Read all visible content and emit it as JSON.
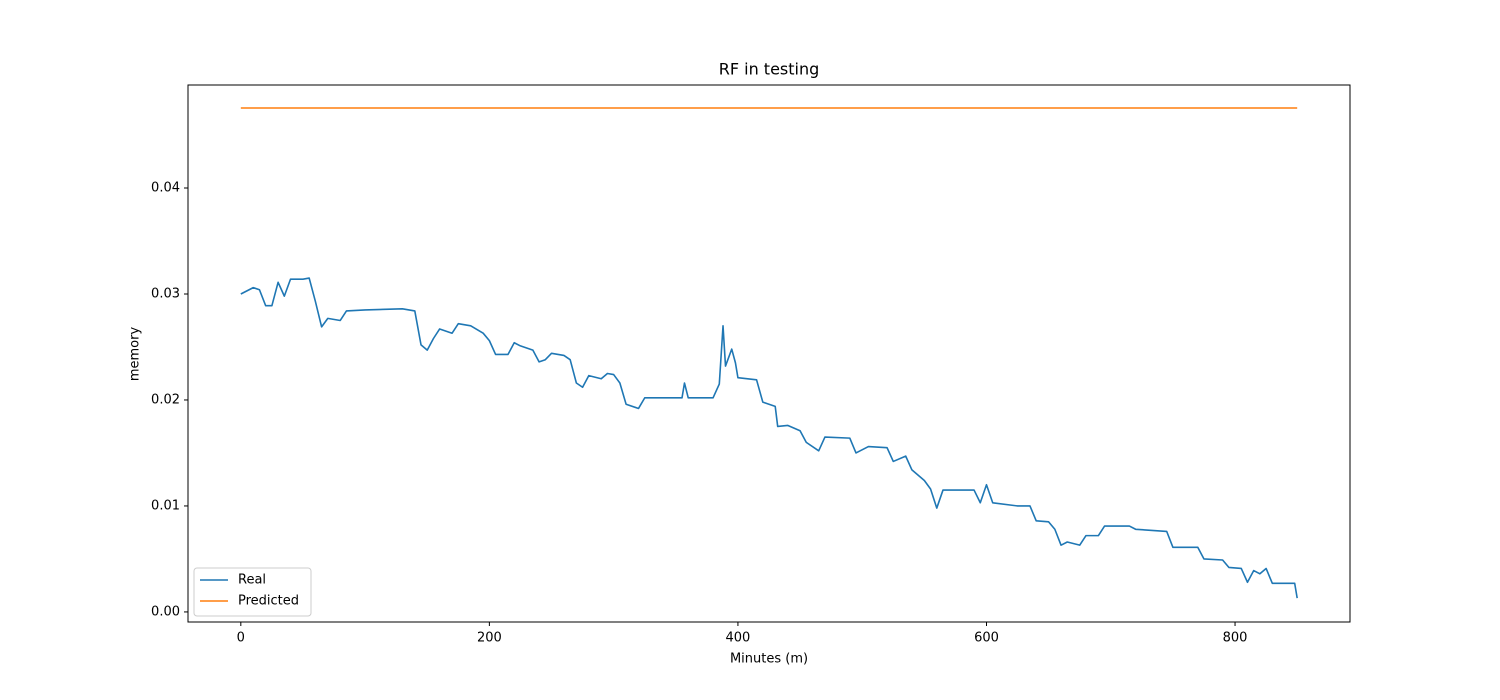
{
  "chart_data": {
    "type": "line",
    "title": "RF in testing",
    "xlabel": "Minutes (m)",
    "ylabel": "memory",
    "x": [
      0,
      10,
      15,
      20,
      25,
      30,
      35,
      40,
      50,
      55,
      60,
      65,
      70,
      80,
      85,
      100,
      130,
      140,
      145,
      150,
      155,
      160,
      170,
      175,
      185,
      195,
      200,
      205,
      215,
      220,
      225,
      235,
      240,
      245,
      250,
      260,
      265,
      270,
      275,
      280,
      290,
      295,
      300,
      305,
      310,
      320,
      325,
      355,
      357,
      360,
      380,
      385,
      388,
      390,
      395,
      398,
      400,
      415,
      420,
      430,
      432,
      440,
      450,
      455,
      465,
      470,
      490,
      495,
      505,
      520,
      525,
      535,
      540,
      550,
      555,
      560,
      565,
      590,
      595,
      600,
      605,
      625,
      635,
      640,
      650,
      655,
      660,
      665,
      675,
      680,
      690,
      695,
      715,
      720,
      745,
      750,
      770,
      775,
      790,
      795,
      805,
      810,
      815,
      820,
      825,
      830,
      845,
      848,
      850
    ],
    "series": [
      {
        "name": "Real",
        "color": "#1f77b4",
        "values": [
          0.03,
          0.0306,
          0.0304,
          0.0289,
          0.0289,
          0.0311,
          0.0298,
          0.0314,
          0.0314,
          0.0315,
          0.0293,
          0.0269,
          0.0277,
          0.0275,
          0.0284,
          0.0285,
          0.0286,
          0.0284,
          0.0252,
          0.0247,
          0.0258,
          0.0267,
          0.0263,
          0.0272,
          0.027,
          0.0263,
          0.0256,
          0.0243,
          0.0243,
          0.0254,
          0.0251,
          0.0247,
          0.0236,
          0.0238,
          0.0244,
          0.0242,
          0.0238,
          0.0216,
          0.0212,
          0.0223,
          0.022,
          0.0225,
          0.0224,
          0.0216,
          0.0196,
          0.0192,
          0.0202,
          0.0202,
          0.0216,
          0.0202,
          0.0202,
          0.0215,
          0.027,
          0.0232,
          0.0248,
          0.0235,
          0.0221,
          0.0219,
          0.0198,
          0.0194,
          0.0175,
          0.0176,
          0.0171,
          0.016,
          0.0152,
          0.0165,
          0.0164,
          0.015,
          0.0156,
          0.0155,
          0.0142,
          0.0147,
          0.0134,
          0.0124,
          0.0116,
          0.0098,
          0.0115,
          0.0115,
          0.0103,
          0.012,
          0.0103,
          0.01,
          0.01,
          0.0086,
          0.0085,
          0.0078,
          0.0063,
          0.0066,
          0.0063,
          0.0072,
          0.0072,
          0.0081,
          0.0081,
          0.0078,
          0.0076,
          0.0061,
          0.0061,
          0.005,
          0.0049,
          0.0042,
          0.0041,
          0.0028,
          0.0039,
          0.0036,
          0.0041,
          0.0027,
          0.0027,
          0.0027,
          0.0013
        ]
      },
      {
        "name": "Predicted",
        "color": "#ff7f0e",
        "values": [
          0.04755,
          0.04755,
          0.04755,
          0.04755,
          0.04755,
          0.04755,
          0.04755,
          0.04755,
          0.04755,
          0.04755,
          0.04755,
          0.04755,
          0.04755,
          0.04755,
          0.04755,
          0.04755,
          0.04755,
          0.04755,
          0.04755,
          0.04755,
          0.04755,
          0.04755,
          0.04755,
          0.04755,
          0.04755,
          0.04755,
          0.04755,
          0.04755,
          0.04755,
          0.04755,
          0.04755,
          0.04755,
          0.04755,
          0.04755,
          0.04755,
          0.04755,
          0.04755,
          0.04755,
          0.04755,
          0.04755,
          0.04755,
          0.04755,
          0.04755,
          0.04755,
          0.04755,
          0.04755,
          0.04755,
          0.04755,
          0.04755,
          0.04755,
          0.04755,
          0.04755,
          0.04755,
          0.04755,
          0.04755,
          0.04755,
          0.04755,
          0.04755,
          0.04755,
          0.04755,
          0.04755,
          0.04755,
          0.04755,
          0.04755,
          0.04755,
          0.04755,
          0.04755,
          0.04755,
          0.04755,
          0.04755,
          0.04755,
          0.04755,
          0.04755,
          0.04755,
          0.04755,
          0.04755,
          0.04755,
          0.04755,
          0.04755,
          0.04755,
          0.04755,
          0.04755,
          0.04755,
          0.04755,
          0.04755,
          0.04755,
          0.04755,
          0.04755,
          0.04755,
          0.04755,
          0.04755,
          0.04755,
          0.04755,
          0.04755,
          0.04755,
          0.04755,
          0.04755,
          0.04755,
          0.04755,
          0.04755,
          0.04755,
          0.04755,
          0.04755,
          0.04755,
          0.04755,
          0.04755,
          0.04755,
          0.04755,
          0.04755
        ]
      }
    ],
    "xlim": [
      -42.5,
      892.5
    ],
    "xticks": [
      0,
      200,
      400,
      600,
      800
    ],
    "ylim": [
      -0.00095,
      0.04972
    ],
    "yticks": [
      {
        "value": 0,
        "label": "0.00"
      },
      0.01,
      0.02,
      0.03,
      0.04
    ],
    "grid": false,
    "legend": "lower left"
  }
}
